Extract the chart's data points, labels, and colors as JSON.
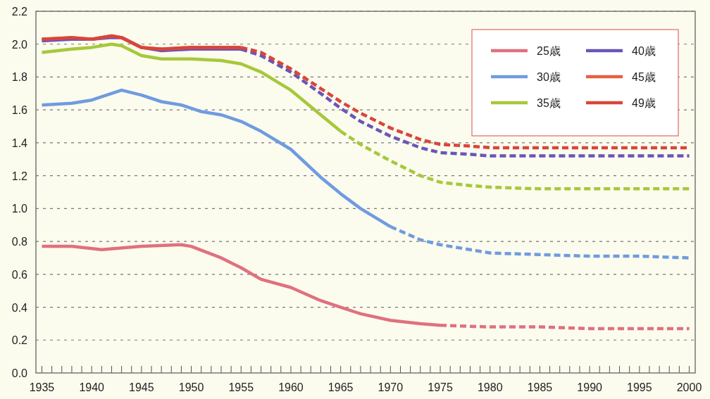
{
  "chart_data": {
    "type": "line",
    "legend": "top right",
    "grid": "y",
    "line_style": "solid",
    "marker": "none",
    "xlim": [
      1934.4,
      2000.6
    ],
    "ylim": [
      0,
      2.2
    ],
    "yticks": [
      {
        "value": 0,
        "label": "0.0"
      },
      0.2,
      0.4,
      0.6,
      0.8,
      {
        "value": 1,
        "label": "1.0"
      },
      1.2,
      1.4,
      1.6,
      1.8,
      {
        "value": 2,
        "label": "2.0"
      },
      2.2
    ],
    "xticks": [
      1935,
      {
        "value": 1936,
        "label": null
      },
      {
        "value": 1937,
        "label": null
      },
      {
        "value": 1938,
        "label": null
      },
      {
        "value": 1939,
        "label": null
      },
      1940,
      {
        "value": 1941,
        "label": null
      },
      {
        "value": 1942,
        "label": null
      },
      {
        "value": 1943,
        "label": null
      },
      {
        "value": 1944,
        "label": null
      },
      1945,
      {
        "value": 1946,
        "label": null
      },
      {
        "value": 1947,
        "label": null
      },
      {
        "value": 1948,
        "label": null
      },
      {
        "value": 1949,
        "label": null
      },
      1950,
      {
        "value": 1951,
        "label": null
      },
      {
        "value": 1952,
        "label": null
      },
      {
        "value": 1953,
        "label": null
      },
      {
        "value": 1954,
        "label": null
      },
      1955,
      {
        "value": 1956,
        "label": null
      },
      {
        "value": 1957,
        "label": null
      },
      {
        "value": 1958,
        "label": null
      },
      {
        "value": 1959,
        "label": null
      },
      1960,
      {
        "value": 1961,
        "label": null
      },
      {
        "value": 1962,
        "label": null
      },
      {
        "value": 1963,
        "label": null
      },
      {
        "value": 1964,
        "label": null
      },
      1965,
      {
        "value": 1966,
        "label": null
      },
      {
        "value": 1967,
        "label": null
      },
      {
        "value": 1968,
        "label": null
      },
      {
        "value": 1969,
        "label": null
      },
      1970,
      {
        "value": 1971,
        "label": null
      },
      {
        "value": 1972,
        "label": null
      },
      {
        "value": 1973,
        "label": null
      },
      {
        "value": 1974,
        "label": null
      },
      1975,
      {
        "value": 1976,
        "label": null
      },
      {
        "value": 1977,
        "label": null
      },
      {
        "value": 1978,
        "label": null
      },
      {
        "value": 1979,
        "label": null
      },
      1980,
      {
        "value": 1981,
        "label": null
      },
      {
        "value": 1982,
        "label": null
      },
      {
        "value": 1983,
        "label": null
      },
      {
        "value": 1984,
        "label": null
      },
      1985,
      {
        "value": 1986,
        "label": null
      },
      {
        "value": 1987,
        "label": null
      },
      {
        "value": 1988,
        "label": null
      },
      {
        "value": 1989,
        "label": null
      },
      1990,
      {
        "value": 1991,
        "label": null
      },
      {
        "value": 1992,
        "label": null
      },
      {
        "value": 1993,
        "label": null
      },
      {
        "value": 1994,
        "label": null
      },
      1995,
      {
        "value": 1996,
        "label": null
      },
      {
        "value": 1997,
        "label": null
      },
      {
        "value": 1998,
        "label": null
      },
      {
        "value": 1999,
        "label": null
      },
      2000
    ],
    "series": [
      {
        "name": "25歳",
        "color": "#e0707e",
        "x": [
          1935,
          1938,
          1941,
          1945,
          1949,
          1950,
          1953,
          1955,
          1957,
          1960,
          1963,
          1965,
          1967,
          1970,
          1973,
          1975
        ],
        "values": [
          0.77,
          0.77,
          0.75,
          0.77,
          0.78,
          0.77,
          0.7,
          0.64,
          0.57,
          0.52,
          0.44,
          0.4,
          0.36,
          0.32,
          0.3,
          0.29
        ]
      },
      {
        "name": "30歳",
        "color": "#6f9be0",
        "x": [
          1935,
          1938,
          1940,
          1943,
          1945,
          1947,
          1949,
          1951,
          1953,
          1955,
          1957,
          1960,
          1963,
          1965,
          1967,
          1970
        ],
        "values": [
          1.63,
          1.64,
          1.66,
          1.72,
          1.69,
          1.65,
          1.63,
          1.59,
          1.57,
          1.53,
          1.47,
          1.36,
          1.19,
          1.09,
          1.0,
          0.89
        ]
      },
      {
        "name": "35歳",
        "color": "#a6c83a",
        "x": [
          1935,
          1938,
          1940,
          1942,
          1943,
          1945,
          1947,
          1950,
          1953,
          1955,
          1957,
          1960,
          1963,
          1965
        ],
        "values": [
          1.95,
          1.97,
          1.98,
          2.0,
          1.99,
          1.93,
          1.91,
          1.91,
          1.9,
          1.88,
          1.83,
          1.72,
          1.57,
          1.47
        ]
      },
      {
        "name": "40歳",
        "color": "#6a55b8",
        "x": [
          1935,
          1938,
          1940,
          1942,
          1943,
          1945,
          1947,
          1950,
          1953,
          1955
        ],
        "values": [
          2.02,
          2.03,
          2.03,
          2.04,
          2.04,
          1.98,
          1.96,
          1.97,
          1.97,
          1.97
        ]
      },
      {
        "name": "45歳",
        "color": "#e5603c",
        "x": [
          1935,
          1938,
          1940,
          1942,
          1943,
          1945,
          1947,
          1950,
          1953,
          1955
        ],
        "values": [
          2.03,
          2.04,
          2.03,
          2.05,
          2.04,
          1.98,
          1.97,
          1.98,
          1.98,
          1.98
        ]
      },
      {
        "name": "49歳",
        "color": "#d9453a",
        "x": [
          1935,
          1938,
          1940,
          1942,
          1943,
          1945,
          1947,
          1950,
          1953,
          1955
        ],
        "values": [
          2.03,
          2.04,
          2.03,
          2.05,
          2.04,
          1.98,
          1.97,
          1.98,
          1.98,
          1.98
        ]
      },
      {
        "color": "#e0707e",
        "line_style": "dashed",
        "x": [
          1975,
          1980,
          1985,
          1990,
          1995,
          2000
        ],
        "values": [
          0.29,
          0.28,
          0.28,
          0.27,
          0.27,
          0.27
        ]
      },
      {
        "color": "#6f9be0",
        "line_style": "dashed",
        "x": [
          1970,
          1973,
          1975,
          1978,
          1980,
          1985,
          1990,
          1995,
          2000
        ],
        "values": [
          0.89,
          0.81,
          0.78,
          0.75,
          0.73,
          0.72,
          0.71,
          0.71,
          0.7
        ]
      },
      {
        "color": "#a6c83a",
        "line_style": "dashed",
        "x": [
          1965,
          1967,
          1970,
          1973,
          1975,
          1978,
          1980,
          1985,
          1990,
          1995,
          2000
        ],
        "values": [
          1.47,
          1.39,
          1.29,
          1.2,
          1.16,
          1.14,
          1.13,
          1.12,
          1.12,
          1.12,
          1.12
        ]
      },
      {
        "color": "#6a55b8",
        "line_style": "dashed",
        "x": [
          1955,
          1957,
          1960,
          1963,
          1965,
          1967,
          1970,
          1973,
          1975,
          1978,
          1980,
          1985,
          1990,
          1995,
          2000
        ],
        "values": [
          1.97,
          1.93,
          1.83,
          1.7,
          1.61,
          1.53,
          1.44,
          1.37,
          1.34,
          1.33,
          1.32,
          1.32,
          1.32,
          1.32,
          1.32
        ]
      },
      {
        "color": "#d9453a",
        "line_style": "dashed",
        "x": [
          1955,
          1957,
          1960,
          1963,
          1965,
          1967,
          1970,
          1973,
          1975,
          1978,
          1980,
          1985,
          1990,
          1995,
          2000
        ],
        "values": [
          1.98,
          1.95,
          1.85,
          1.73,
          1.65,
          1.58,
          1.49,
          1.42,
          1.39,
          1.38,
          1.37,
          1.37,
          1.37,
          1.37,
          1.37
        ]
      }
    ]
  }
}
